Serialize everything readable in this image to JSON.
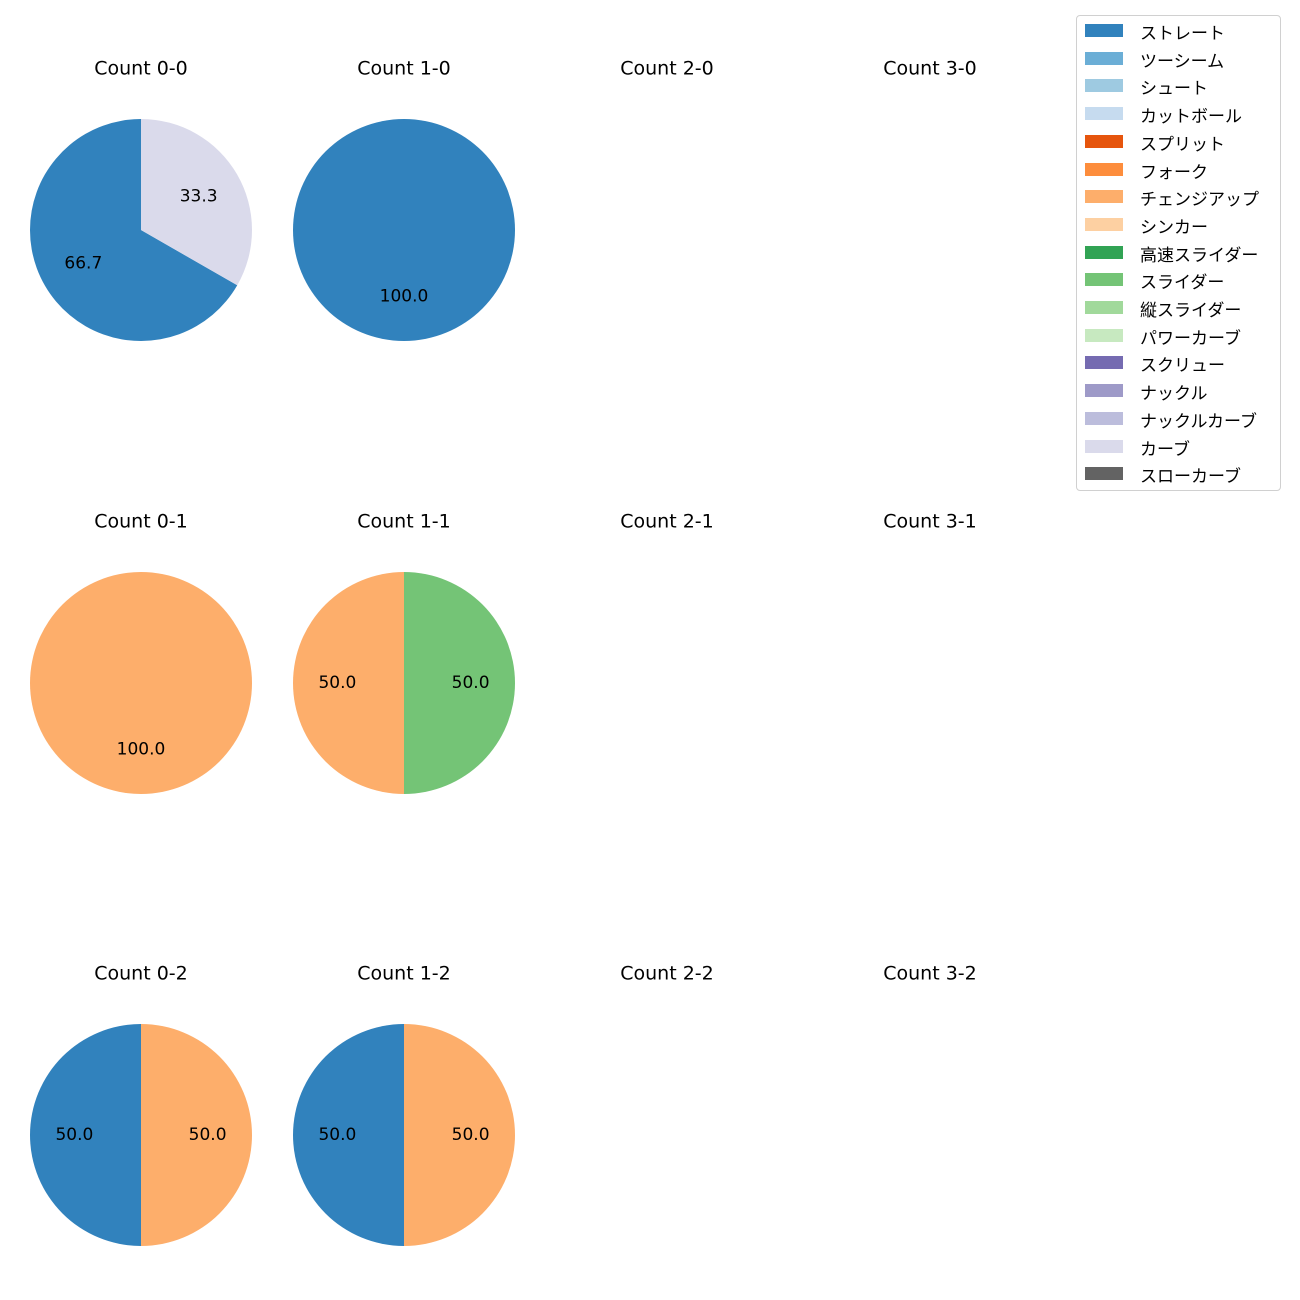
{
  "chart_data": {
    "type": "pie",
    "layout": "3 rows x 4 columns of pie charts, one per ball-strike count",
    "legend": [
      {
        "name": "ストレート",
        "color": "#3182bd"
      },
      {
        "name": "ツーシーム",
        "color": "#6baed6"
      },
      {
        "name": "シュート",
        "color": "#9ecae1"
      },
      {
        "name": "カットボール",
        "color": "#c6dbef"
      },
      {
        "name": "スプリット",
        "color": "#e6550d"
      },
      {
        "name": "フォーク",
        "color": "#fd8d3c"
      },
      {
        "name": "チェンジアップ",
        "color": "#fdae6b"
      },
      {
        "name": "シンカー",
        "color": "#fdd0a2"
      },
      {
        "name": "高速スライダー",
        "color": "#31a354"
      },
      {
        "name": "スライダー",
        "color": "#74c476"
      },
      {
        "name": "縦スライダー",
        "color": "#a1d99b"
      },
      {
        "name": "パワーカーブ",
        "color": "#c7e9c0"
      },
      {
        "name": "スクリュー",
        "color": "#756bb1"
      },
      {
        "name": "ナックル",
        "color": "#9e9ac8"
      },
      {
        "name": "ナックルカーブ",
        "color": "#bcbddc"
      },
      {
        "name": "カーブ",
        "color": "#dadaeb"
      },
      {
        "name": "スローカーブ",
        "color": "#636363"
      }
    ],
    "panels": [
      {
        "title": "Count 0-0",
        "slices": [
          {
            "pitch": "ストレート",
            "value": 66.7,
            "label": "66.7"
          },
          {
            "pitch": "カーブ",
            "value": 33.3,
            "label": "33.3"
          }
        ]
      },
      {
        "title": "Count 1-0",
        "slices": [
          {
            "pitch": "ストレート",
            "value": 100.0,
            "label": "100.0"
          }
        ]
      },
      {
        "title": "Count 2-0",
        "slices": []
      },
      {
        "title": "Count 3-0",
        "slices": []
      },
      {
        "title": "Count 0-1",
        "slices": [
          {
            "pitch": "チェンジアップ",
            "value": 100.0,
            "label": "100.0"
          }
        ]
      },
      {
        "title": "Count 1-1",
        "slices": [
          {
            "pitch": "チェンジアップ",
            "value": 50.0,
            "label": "50.0"
          },
          {
            "pitch": "スライダー",
            "value": 50.0,
            "label": "50.0"
          }
        ]
      },
      {
        "title": "Count 2-1",
        "slices": []
      },
      {
        "title": "Count 3-1",
        "slices": []
      },
      {
        "title": "Count 0-2",
        "slices": [
          {
            "pitch": "ストレート",
            "value": 50.0,
            "label": "50.0"
          },
          {
            "pitch": "チェンジアップ",
            "value": 50.0,
            "label": "50.0"
          }
        ]
      },
      {
        "title": "Count 1-2",
        "slices": [
          {
            "pitch": "ストレート",
            "value": 50.0,
            "label": "50.0"
          },
          {
            "pitch": "チェンジアップ",
            "value": 50.0,
            "label": "50.0"
          }
        ]
      },
      {
        "title": "Count 2-2",
        "slices": []
      },
      {
        "title": "Count 3-2",
        "slices": []
      }
    ]
  }
}
